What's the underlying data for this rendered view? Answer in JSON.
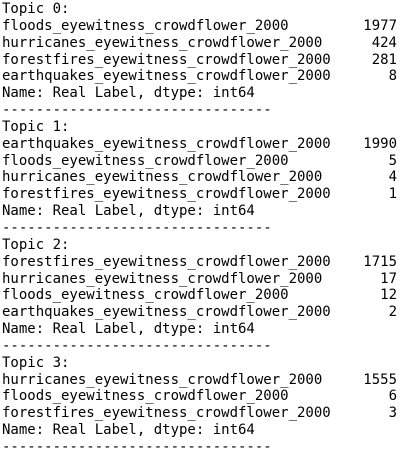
{
  "topics": [
    {
      "heading": "Topic 0:",
      "rows": [
        {
          "label": "floods_eyewitness_crowdflower_2000",
          "count": 1977
        },
        {
          "label": "hurricanes_eyewitness_crowdflower_2000",
          "count": 424
        },
        {
          "label": "forestfires_eyewitness_crowdflower_2000",
          "count": 281
        },
        {
          "label": "earthquakes_eyewitness_crowdflower_2000",
          "count": 8
        }
      ],
      "footer": "Name: Real Label, dtype: int64",
      "separator": "--------------------------------"
    },
    {
      "heading": "Topic 1:",
      "rows": [
        {
          "label": "earthquakes_eyewitness_crowdflower_2000",
          "count": 1990
        },
        {
          "label": "floods_eyewitness_crowdflower_2000",
          "count": 5
        },
        {
          "label": "hurricanes_eyewitness_crowdflower_2000",
          "count": 4
        },
        {
          "label": "forestfires_eyewitness_crowdflower_2000",
          "count": 1
        }
      ],
      "footer": "Name: Real Label, dtype: int64",
      "separator": "--------------------------------"
    },
    {
      "heading": "Topic 2:",
      "rows": [
        {
          "label": "forestfires_eyewitness_crowdflower_2000",
          "count": 1715
        },
        {
          "label": "hurricanes_eyewitness_crowdflower_2000",
          "count": 17
        },
        {
          "label": "floods_eyewitness_crowdflower_2000",
          "count": 12
        },
        {
          "label": "earthquakes_eyewitness_crowdflower_2000",
          "count": 2
        }
      ],
      "footer": "Name: Real Label, dtype: int64",
      "separator": "--------------------------------"
    },
    {
      "heading": "Topic 3:",
      "rows": [
        {
          "label": "hurricanes_eyewitness_crowdflower_2000",
          "count": 1555
        },
        {
          "label": "floods_eyewitness_crowdflower_2000",
          "count": 6
        },
        {
          "label": "forestfires_eyewitness_crowdflower_2000",
          "count": 3
        }
      ],
      "footer": "Name: Real Label, dtype: int64",
      "separator": "--------------------------------"
    }
  ]
}
